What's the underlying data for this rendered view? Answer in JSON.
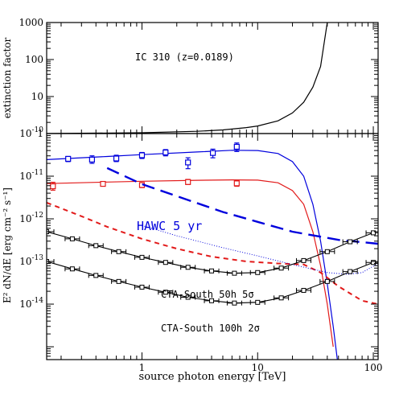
{
  "chart_data": [
    {
      "type": "line",
      "panel": "top",
      "ylabel": "extinction factor",
      "annotation": "IC 310 (z=0.0189)",
      "xscale": "log",
      "yscale": "log",
      "xlim": [
        0.15,
        110
      ],
      "ylim": [
        1,
        1000
      ],
      "yticks": [
        1,
        10,
        100,
        1000
      ],
      "ytick_labels": [
        "1",
        "10",
        "100",
        "1000"
      ],
      "series": [
        {
          "color": "#000000",
          "x": [
            0.15,
            1,
            3,
            5,
            8,
            10,
            15,
            20,
            25,
            30,
            35,
            40
          ],
          "y": [
            1.0,
            1.05,
            1.15,
            1.25,
            1.45,
            1.6,
            2.2,
            3.6,
            7,
            18,
            65,
            1000
          ]
        }
      ]
    },
    {
      "type": "line",
      "panel": "bottom",
      "xlabel": "source photon energy [TeV]",
      "ylabel": "E² dN/dE  [erg cm⁻² s⁻¹]",
      "xscale": "log",
      "yscale": "log",
      "xlim": [
        0.15,
        110
      ],
      "ylim": [
        5e-16,
        1e-10
      ],
      "xticks": [
        1,
        10,
        100
      ],
      "xtick_labels": [
        "1",
        "10",
        "100"
      ],
      "yticks": [
        1e-14,
        1e-13,
        1e-12,
        1e-11,
        1e-10
      ],
      "ytick_labels": [
        [
          "10",
          "-14"
        ],
        [
          "10",
          "-13"
        ],
        [
          "10",
          "-12"
        ],
        [
          "10",
          "-11"
        ],
        [
          "10",
          "-10"
        ]
      ],
      "annotations": [
        "HAWC 5 yr",
        "CTA-South 50h 5σ",
        "CTA-South 100h 2σ"
      ],
      "series": [
        {
          "color": "#0000dd",
          "style": "solid",
          "x": [
            0.15,
            0.5,
            1,
            3,
            6,
            10,
            15,
            20,
            25,
            30,
            35,
            40,
            45,
            50
          ],
          "y": [
            2.45e-11,
            2.9e-11,
            3.2e-11,
            3.7e-11,
            4.05e-11,
            4e-11,
            3.4e-11,
            2.2e-11,
            1e-11,
            2.2e-12,
            3e-13,
            3e-14,
            3e-15,
            3e-16
          ]
        },
        {
          "color": "#0000dd",
          "style": "points",
          "x": [
            0.23,
            0.37,
            0.6,
            1.0,
            1.6,
            2.5,
            4.1,
            6.6
          ],
          "y": [
            2.55e-11,
            2.45e-11,
            2.6e-11,
            3.1e-11,
            3.6e-11,
            2.1e-11,
            3.5e-11,
            4.9e-11
          ],
          "yerr_lo": [
            2.2e-11,
            2e-11,
            2.2e-11,
            2.6e-11,
            3e-11,
            1.5e-11,
            2.7e-11,
            3.8e-11
          ],
          "yerr_hi": [
            2.9e-11,
            3e-11,
            3.1e-11,
            3.6e-11,
            4.2e-11,
            2.7e-11,
            4.3e-11,
            6e-11
          ]
        },
        {
          "color": "#e21a1a",
          "style": "solid",
          "x": [
            0.15,
            0.5,
            1,
            3,
            6,
            10,
            15,
            20,
            25,
            30,
            35,
            40,
            45
          ],
          "y": [
            6.7e-12,
            7.3e-12,
            7.6e-12,
            8e-12,
            8.2e-12,
            8.1e-12,
            7e-12,
            4.6e-12,
            2.2e-12,
            5e-13,
            8e-14,
            1e-14,
            1e-15
          ]
        },
        {
          "color": "#e21a1a",
          "style": "points",
          "x": [
            0.17,
            0.46,
            1.0,
            2.5,
            6.6
          ],
          "y": [
            5.8e-12,
            6.6e-12,
            6.2e-12,
            7.3e-12,
            6.8e-12
          ],
          "yerr_lo": [
            4.7e-12,
            5.9e-12,
            5.4e-12,
            6.4e-12,
            5.8e-12
          ],
          "yerr_hi": [
            7.2e-12,
            7.4e-12,
            7.1e-12,
            8.4e-12,
            8e-12
          ]
        },
        {
          "color": "#0000dd",
          "style": "longdash",
          "x": [
            0.5,
            1,
            2,
            5,
            10,
            20,
            50,
            110
          ],
          "y": [
            1.55e-11,
            6.5e-12,
            3.4e-12,
            1.45e-12,
            8.5e-13,
            5e-13,
            3.2e-13,
            2.6e-13
          ]
        },
        {
          "color": "#e21a1a",
          "style": "shortdash",
          "x": [
            0.15,
            0.3,
            0.5,
            1,
            2,
            4,
            8,
            15,
            25,
            35,
            50,
            80,
            110
          ],
          "y": [
            2.4e-12,
            1.15e-12,
            6.5e-13,
            3.4e-13,
            2e-13,
            1.3e-13,
            1e-13,
            9e-14,
            8.5e-14,
            5.5e-14,
            2.6e-14,
            1.2e-14,
            1e-14
          ]
        },
        {
          "color": "#0000dd",
          "style": "dotted",
          "x": [
            1,
            2,
            5,
            10,
            20,
            40,
            60,
            80,
            110
          ],
          "y": [
            7e-13,
            4e-13,
            2.1e-13,
            1.35e-13,
            8.5e-14,
            5.5e-14,
            5e-14,
            5.5e-14,
            9e-14
          ]
        },
        {
          "color": "#000000",
          "style": "line+points",
          "x": [
            0.15,
            0.25,
            0.4,
            0.63,
            1.0,
            1.6,
            2.5,
            4.0,
            6.3,
            10,
            16,
            25,
            40,
            63,
            100
          ],
          "y": [
            5e-13,
            3.4e-13,
            2.35e-13,
            1.7e-13,
            1.25e-13,
            9.5e-14,
            7.3e-14,
            6e-14,
            5.3e-14,
            5.5e-14,
            7e-14,
            1.05e-13,
            1.7e-13,
            2.9e-13,
            4.7e-13
          ]
        },
        {
          "color": "#000000",
          "style": "line+points",
          "x": [
            0.15,
            0.25,
            0.4,
            0.63,
            1.0,
            1.6,
            2.5,
            4.0,
            6.3,
            10,
            16,
            25,
            40,
            63,
            100
          ],
          "y": [
            1e-13,
            6.7e-14,
            4.7e-14,
            3.4e-14,
            2.5e-14,
            1.9e-14,
            1.45e-14,
            1.2e-14,
            1.06e-14,
            1.1e-14,
            1.4e-14,
            2.1e-14,
            3.4e-14,
            5.8e-14,
            9.5e-14
          ]
        }
      ]
    }
  ]
}
